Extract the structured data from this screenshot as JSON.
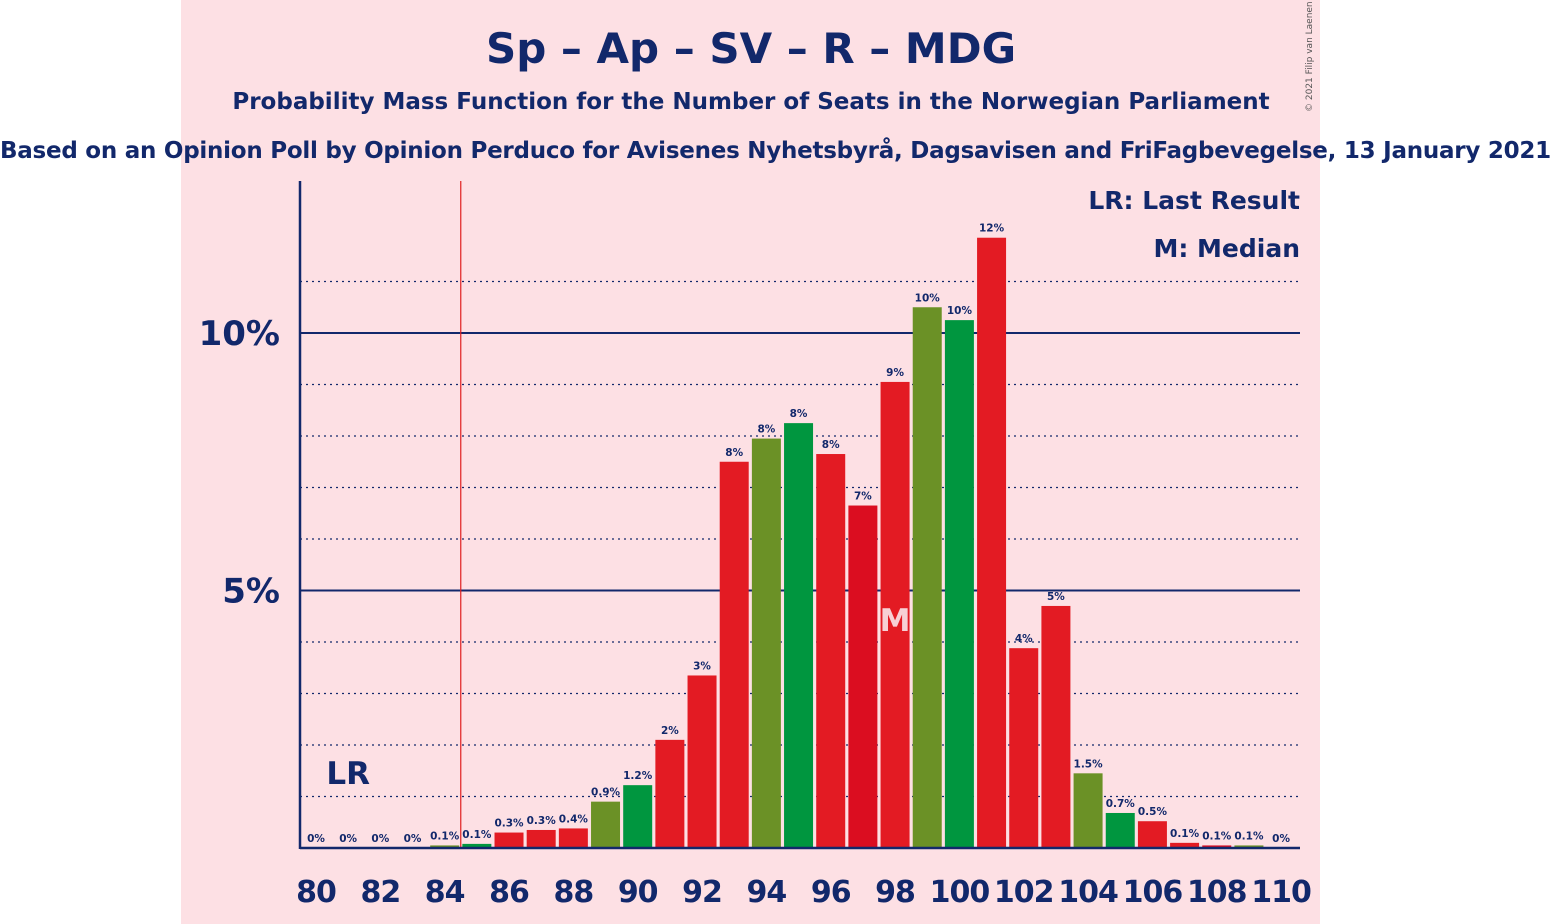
{
  "colors": {
    "panel_bg": "#fde0e4",
    "text": "#12286b",
    "axis": "#12286b",
    "threshold": "#e01f1f",
    "red": "#e31b23",
    "green": "#00963f",
    "olive": "#6b9126",
    "crimson": "#db0d20"
  },
  "header": {
    "title": "Sp – Ap – SV – R – MDG",
    "subtitle": "Probability Mass Function for the Number of Seats in the Norwegian Parliament",
    "source": "Based on an Opinion Poll by Opinion Perduco for Avisenes Nyhetsbyrå, Dagsavisen and FriFagbevegelse, 13 January 2021",
    "copyright": "© 2021 Filip van Laenen"
  },
  "legend": {
    "last_result": "LR: Last Result",
    "median": "M: Median"
  },
  "chart_data": {
    "type": "bar",
    "x": [
      80,
      81,
      82,
      83,
      84,
      85,
      86,
      87,
      88,
      89,
      90,
      91,
      92,
      93,
      94,
      95,
      96,
      97,
      98,
      99,
      100,
      101,
      102,
      103,
      104,
      105,
      106,
      107,
      108,
      109,
      110
    ],
    "values": [
      0,
      0,
      0,
      0,
      0.05,
      0.08,
      0.3,
      0.35,
      0.38,
      0.9,
      1.22,
      2.1,
      3.35,
      7.5,
      7.95,
      8.25,
      7.65,
      6.65,
      9.05,
      10.5,
      10.25,
      11.85,
      3.88,
      4.7,
      1.45,
      0.68,
      0.52,
      0.1,
      0.05,
      0.05,
      0
    ],
    "labels": [
      "0%",
      "0%",
      "0%",
      "0%",
      "0.1%",
      "0.1%",
      "0.3%",
      "0.3%",
      "0.4%",
      "0.9%",
      "1.2%",
      "2%",
      "3%",
      "8%",
      "8%",
      "8%",
      "8%",
      "7%",
      "9%",
      "10%",
      "10%",
      "12%",
      "4%",
      "5%",
      "1.5%",
      "0.7%",
      "0.5%",
      "0.1%",
      "0.1%",
      "0.1%",
      "0%"
    ],
    "bar_colors": [
      "red",
      "red",
      "green",
      "red",
      "olive",
      "green",
      "red",
      "red",
      "red",
      "olive",
      "green",
      "red",
      "red",
      "red",
      "olive",
      "green",
      "red",
      "crimson",
      "red",
      "olive",
      "green",
      "red",
      "red",
      "red",
      "olive",
      "green",
      "red",
      "red",
      "crimson",
      "olive",
      "green"
    ],
    "x_ticks": [
      "80",
      "82",
      "84",
      "86",
      "88",
      "90",
      "92",
      "94",
      "96",
      "98",
      "100",
      "102",
      "104",
      "106",
      "108",
      "110"
    ],
    "y_ticks": [
      {
        "value": 5,
        "label": "5%"
      },
      {
        "value": 10,
        "label": "10%"
      }
    ],
    "ylim": [
      0,
      13
    ],
    "grid": "dotted every 1%, solid at 5% and 10%",
    "last_result": {
      "seats": 81,
      "label": "LR"
    },
    "median": {
      "seats": 98,
      "label": "M"
    },
    "threshold_line_between": [
      84,
      85
    ]
  }
}
